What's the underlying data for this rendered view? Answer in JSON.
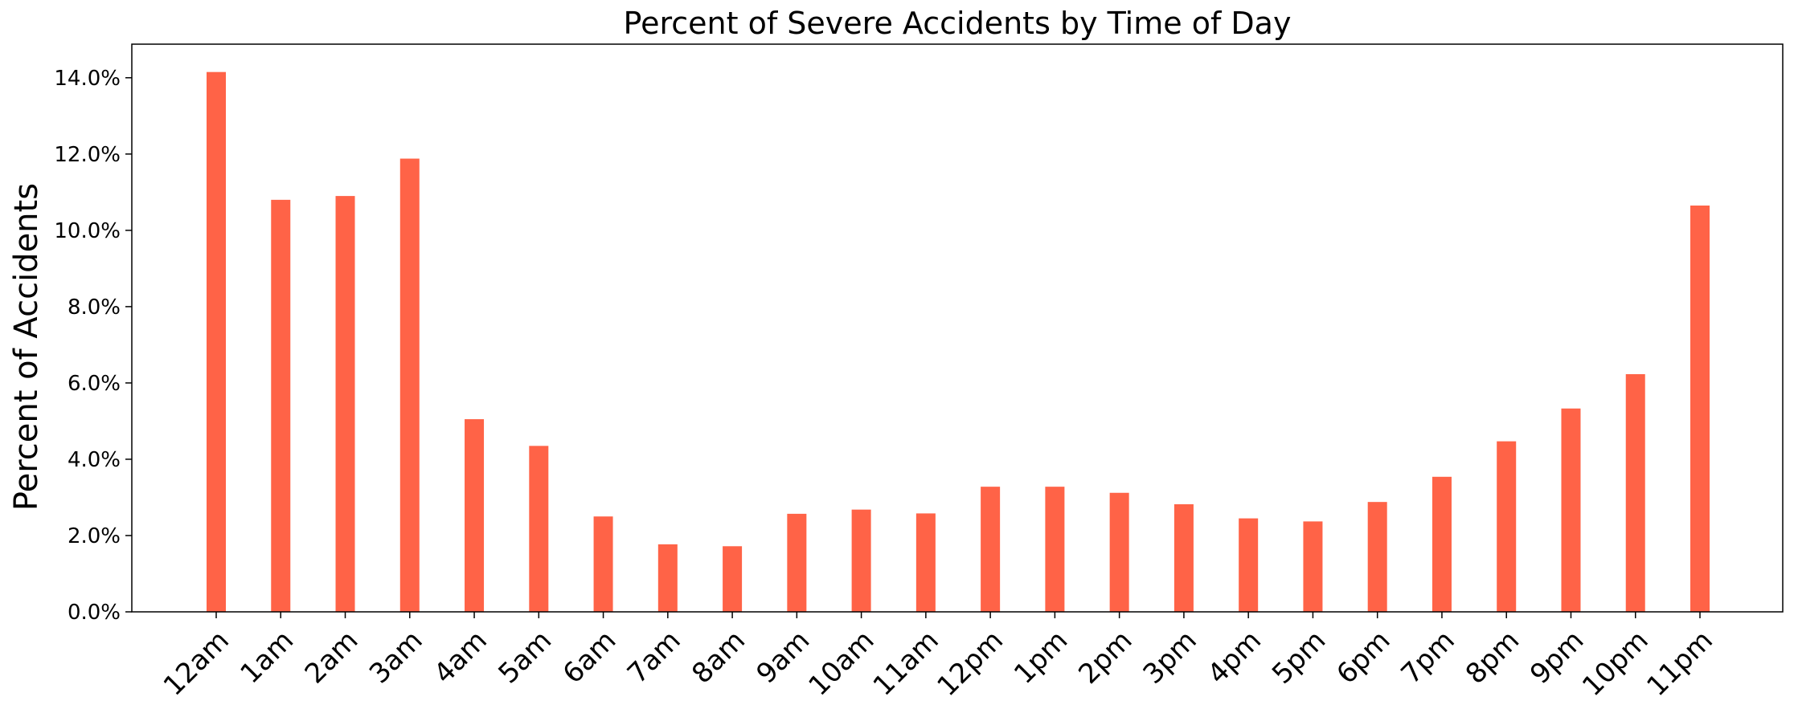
{
  "chart_data": {
    "type": "bar",
    "title": "Percent of Severe Accidents by Time of Day",
    "xlabel": "",
    "ylabel": "Percent of Accidents",
    "categories": [
      "12am",
      "1am",
      "2am",
      "3am",
      "4am",
      "5am",
      "6am",
      "7am",
      "8am",
      "9am",
      "10am",
      "11am",
      "12pm",
      "1pm",
      "2pm",
      "3pm",
      "4pm",
      "5pm",
      "6pm",
      "7pm",
      "8pm",
      "9pm",
      "10pm",
      "11pm"
    ],
    "values": [
      14.15,
      10.8,
      10.9,
      11.88,
      5.05,
      4.35,
      2.5,
      1.77,
      1.72,
      2.57,
      2.68,
      2.58,
      3.28,
      3.28,
      3.12,
      2.82,
      2.45,
      2.37,
      2.88,
      3.54,
      4.47,
      5.33,
      6.23,
      10.65
    ],
    "yticks": [
      0,
      2,
      4,
      6,
      8,
      10,
      12,
      14
    ],
    "ytick_labels": [
      "0.0%",
      "2.0%",
      "4.0%",
      "6.0%",
      "8.0%",
      "10.0%",
      "12.0%",
      "14.0%"
    ],
    "ylim": [
      0,
      14.88
    ],
    "bar_color": "#ff6347",
    "grid": false,
    "legend": "none"
  }
}
